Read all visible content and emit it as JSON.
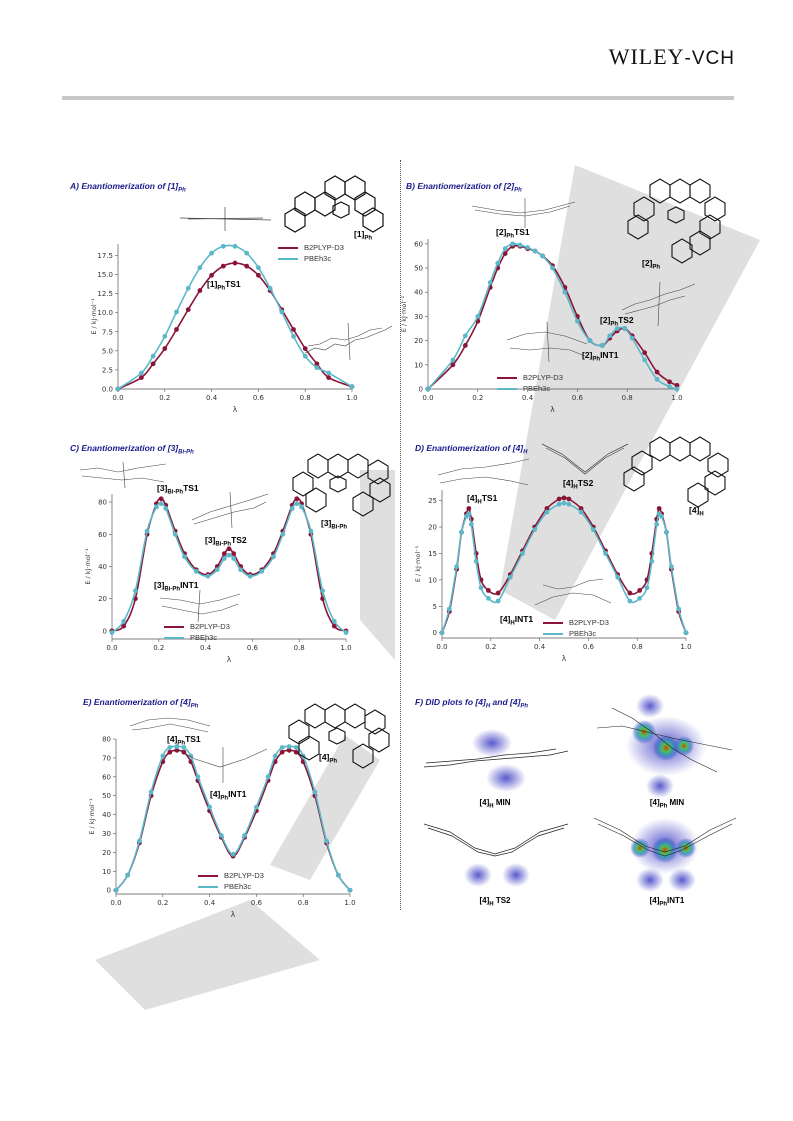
{
  "header": {
    "publisher_main": "WILEY",
    "publisher_suffix": "-VCH"
  },
  "legend": {
    "series_1": "B2PLYP-D3",
    "series_2": "PBEh3c"
  },
  "axis": {
    "xlabel": "λ",
    "ylabel": "E / kJ·mol⁻¹"
  },
  "colors": {
    "b2plyp": "#8a1538",
    "pbeh3c": "#5bb8c8",
    "title": "#1a1a8c",
    "watermark": "#d9d9d9"
  },
  "panels": {
    "A": {
      "title_main": "A) Enantiomerization of [1]",
      "title_sub": "Ph",
      "mol_main": "[1]",
      "mol_sub": "Ph",
      "labels": [
        {
          "main": "[1]",
          "sub": "Ph",
          "after": "TS1"
        }
      ]
    },
    "B": {
      "title_main": "B) Enantiomerization of [2]",
      "title_sub": "Ph",
      "mol_main": "[2]",
      "mol_sub": "Ph",
      "labels": [
        {
          "main": "[2]",
          "sub": "Ph",
          "after": "TS1"
        },
        {
          "main": "[2]",
          "sub": "Ph",
          "after": "TS2"
        },
        {
          "main": "[2]",
          "sub": "Ph",
          "after": "INT1"
        }
      ]
    },
    "C": {
      "title_main": "C) Enantiomerization of [3]",
      "title_sub": "Bi-Ph",
      "mol_main": "[3]",
      "mol_sub": "Bi-Ph",
      "labels": [
        {
          "main": "[3]",
          "sub": "Bi-Ph",
          "after": "TS1"
        },
        {
          "main": "[3]",
          "sub": "Bi-Ph",
          "after": "TS2"
        },
        {
          "main": "[3]",
          "sub": "Bi-Ph",
          "after": "INT1"
        }
      ]
    },
    "D": {
      "title_main": "D) Enantiomerization of [4]",
      "title_sub": "H",
      "mol_main": "[4]",
      "mol_sub": "H",
      "labels": [
        {
          "main": "[4]",
          "sub": "H",
          "after": "TS1"
        },
        {
          "main": "[4]",
          "sub": "H",
          "after": "TS2"
        },
        {
          "main": "[4]",
          "sub": "H",
          "after": "INT1"
        }
      ]
    },
    "E": {
      "title_main": "E) Enantiomerization of [4]",
      "title_sub": "Ph",
      "mol_main": "[4]",
      "mol_sub": "Ph",
      "labels": [
        {
          "main": "[4]",
          "sub": "Ph",
          "after": "TS1"
        },
        {
          "main": "[4]",
          "sub": "Ph",
          "after": "INT1"
        }
      ]
    },
    "F": {
      "title_main": "F) DID plots fo [4]",
      "title_sub1": "H",
      "title_mid": " and [4]",
      "title_sub2": "Ph",
      "plots": [
        {
          "main": "[4]",
          "sub": "H",
          "after": " MIN"
        },
        {
          "main": "[4]",
          "sub": "Ph",
          "after": " MIN"
        },
        {
          "main": "[4]",
          "sub": "H",
          "after": " TS2"
        },
        {
          "main": "[4]",
          "sub": "Ph",
          "after": "INT1"
        }
      ]
    }
  },
  "chart_data": [
    {
      "id": "A",
      "type": "line",
      "xlabel": "λ",
      "ylabel": "E / kJ·mol⁻¹",
      "xlim": [
        0,
        1
      ],
      "ylim": [
        0,
        19
      ],
      "yticks": [
        0.0,
        2.5,
        5.0,
        7.5,
        10.0,
        12.5,
        15.0,
        17.5
      ],
      "ytick_format": 1,
      "xticks": [
        0.0,
        0.2,
        0.4,
        0.6,
        0.8,
        1.0
      ],
      "series": [
        {
          "name": "B2PLYP-D3",
          "x": [
            0.0,
            0.1,
            0.15,
            0.2,
            0.25,
            0.3,
            0.35,
            0.4,
            0.45,
            0.5,
            0.55,
            0.6,
            0.65,
            0.7,
            0.75,
            0.8,
            0.85,
            0.9,
            1.0
          ],
          "y": [
            0.0,
            1.5,
            3.3,
            5.3,
            7.8,
            10.4,
            12.9,
            14.9,
            16.1,
            16.5,
            16.1,
            14.9,
            12.9,
            10.4,
            7.8,
            5.3,
            3.3,
            1.5,
            0.3
          ]
        },
        {
          "name": "PBEh3c",
          "x": [
            0.0,
            0.1,
            0.15,
            0.2,
            0.25,
            0.3,
            0.35,
            0.4,
            0.45,
            0.5,
            0.55,
            0.6,
            0.65,
            0.7,
            0.75,
            0.8,
            0.85,
            0.9,
            1.0
          ],
          "y": [
            0.0,
            2.1,
            4.3,
            6.9,
            10.1,
            13.2,
            15.9,
            17.8,
            18.7,
            18.7,
            17.8,
            15.9,
            13.2,
            10.1,
            6.9,
            4.3,
            2.8,
            2.1,
            0.3
          ]
        }
      ]
    },
    {
      "id": "B",
      "type": "line",
      "xlabel": "λ",
      "ylabel": "E / kJ·mol⁻¹",
      "xlim": [
        0,
        1
      ],
      "ylim": [
        0,
        62
      ],
      "yticks": [
        0,
        10,
        20,
        30,
        40,
        50,
        60
      ],
      "ytick_format": 0,
      "xticks": [
        0.0,
        0.2,
        0.4,
        0.6,
        0.8,
        1.0
      ],
      "series": [
        {
          "name": "B2PLYP-D3",
          "x": [
            0.0,
            0.1,
            0.15,
            0.2,
            0.25,
            0.28,
            0.31,
            0.34,
            0.37,
            0.4,
            0.43,
            0.46,
            0.5,
            0.55,
            0.6,
            0.65,
            0.7,
            0.73,
            0.76,
            0.79,
            0.82,
            0.87,
            0.92,
            0.97,
            1.0
          ],
          "y": [
            0.0,
            10.0,
            18.0,
            28.0,
            42.0,
            50.0,
            56.0,
            59.0,
            59.0,
            58.0,
            57.0,
            55.0,
            51.0,
            42.0,
            30.0,
            20.0,
            18.0,
            21.0,
            24.0,
            25.0,
            22.0,
            15.0,
            7.0,
            3.0,
            1.5
          ]
        },
        {
          "name": "PBEh3c",
          "x": [
            0.0,
            0.1,
            0.15,
            0.2,
            0.25,
            0.28,
            0.31,
            0.34,
            0.37,
            0.4,
            0.43,
            0.46,
            0.5,
            0.55,
            0.6,
            0.65,
            0.7,
            0.73,
            0.76,
            0.79,
            0.82,
            0.87,
            0.92,
            0.97,
            1.0
          ],
          "y": [
            0.0,
            12.0,
            22.0,
            30.0,
            44.0,
            52.0,
            58.0,
            60.0,
            59.5,
            58.5,
            57.0,
            55.0,
            50.0,
            40.0,
            28.0,
            20.0,
            18.0,
            22.0,
            25.0,
            25.0,
            21.0,
            12.0,
            4.0,
            1.0,
            0.0
          ]
        }
      ]
    },
    {
      "id": "C",
      "type": "line",
      "xlabel": "λ",
      "ylabel": "E / kJ·mol⁻¹",
      "xlim": [
        0,
        1
      ],
      "ylim": [
        -5,
        85
      ],
      "yticks": [
        0,
        20,
        40,
        60,
        80
      ],
      "ytick_format": 0,
      "xticks": [
        0.0,
        0.2,
        0.4,
        0.6,
        0.8,
        1.0
      ],
      "series": [
        {
          "name": "B2PLYP-D3",
          "x": [
            0.0,
            0.05,
            0.1,
            0.15,
            0.19,
            0.21,
            0.23,
            0.27,
            0.31,
            0.36,
            0.41,
            0.45,
            0.48,
            0.5,
            0.52,
            0.55,
            0.59,
            0.64,
            0.69,
            0.73,
            0.77,
            0.79,
            0.81,
            0.85,
            0.9,
            0.95,
            1.0
          ],
          "y": [
            0.0,
            3.0,
            20.0,
            60.0,
            79.0,
            82.0,
            78.0,
            62.0,
            48.0,
            38.0,
            35.0,
            40.0,
            48.0,
            51.0,
            48.0,
            40.0,
            35.0,
            38.0,
            48.0,
            62.0,
            78.0,
            82.0,
            79.0,
            60.0,
            20.0,
            3.0,
            0.0
          ]
        },
        {
          "name": "PBEh3c",
          "x": [
            0.0,
            0.05,
            0.1,
            0.15,
            0.19,
            0.21,
            0.23,
            0.27,
            0.31,
            0.36,
            0.41,
            0.45,
            0.48,
            0.5,
            0.52,
            0.55,
            0.59,
            0.64,
            0.69,
            0.73,
            0.77,
            0.79,
            0.81,
            0.85,
            0.9,
            0.95,
            1.0
          ],
          "y": [
            -1.0,
            6.0,
            25.0,
            62.0,
            77.0,
            79.0,
            76.0,
            60.0,
            46.0,
            37.0,
            34.0,
            38.0,
            45.0,
            47.0,
            45.0,
            38.0,
            34.0,
            37.0,
            46.0,
            60.0,
            76.0,
            79.0,
            77.0,
            62.0,
            25.0,
            6.0,
            -1.0
          ]
        }
      ]
    },
    {
      "id": "D",
      "type": "line",
      "xlabel": "λ",
      "ylabel": "E / kJ·mol⁻¹",
      "xlim": [
        0,
        1
      ],
      "ylim": [
        -1,
        27
      ],
      "yticks": [
        0,
        5,
        10,
        15,
        20,
        25
      ],
      "ytick_format": 0,
      "xticks": [
        0.0,
        0.2,
        0.4,
        0.6,
        0.8,
        1.0
      ],
      "series": [
        {
          "name": "B2PLYP-D3",
          "x": [
            0.0,
            0.03,
            0.06,
            0.08,
            0.1,
            0.11,
            0.12,
            0.14,
            0.16,
            0.19,
            0.23,
            0.28,
            0.33,
            0.38,
            0.43,
            0.48,
            0.5,
            0.52,
            0.57,
            0.62,
            0.67,
            0.72,
            0.77,
            0.81,
            0.84,
            0.86,
            0.88,
            0.89,
            0.9,
            0.92,
            0.94,
            0.97,
            1.0
          ],
          "y": [
            0.0,
            4.0,
            12.0,
            19.0,
            22.5,
            23.5,
            21.5,
            15.0,
            10.0,
            8.0,
            7.5,
            11.0,
            15.5,
            20.0,
            23.5,
            25.3,
            25.5,
            25.3,
            23.5,
            20.0,
            15.5,
            11.0,
            7.5,
            8.0,
            10.0,
            15.0,
            21.5,
            23.5,
            22.5,
            19.0,
            12.0,
            4.0,
            0.0
          ]
        },
        {
          "name": "PBEh3c",
          "x": [
            0.0,
            0.03,
            0.06,
            0.08,
            0.1,
            0.11,
            0.12,
            0.14,
            0.16,
            0.19,
            0.23,
            0.28,
            0.33,
            0.38,
            0.43,
            0.48,
            0.5,
            0.52,
            0.57,
            0.62,
            0.67,
            0.72,
            0.77,
            0.81,
            0.84,
            0.86,
            0.88,
            0.89,
            0.9,
            0.92,
            0.94,
            0.97,
            1.0
          ],
          "y": [
            0.0,
            4.5,
            12.5,
            19.0,
            22.0,
            22.5,
            20.5,
            13.5,
            8.5,
            6.5,
            6.0,
            10.5,
            15.0,
            19.5,
            22.8,
            24.3,
            24.5,
            24.3,
            22.8,
            19.5,
            15.0,
            10.5,
            6.0,
            6.5,
            8.5,
            13.5,
            20.5,
            22.5,
            22.0,
            19.0,
            12.5,
            4.5,
            0.0
          ]
        }
      ]
    },
    {
      "id": "E",
      "type": "line",
      "xlabel": "λ",
      "ylabel": "E / kJ·mol⁻¹",
      "xlim": [
        0,
        1
      ],
      "ylim": [
        -2,
        80
      ],
      "yticks": [
        0,
        10,
        20,
        30,
        40,
        50,
        60,
        70,
        80
      ],
      "ytick_format": 0,
      "xticks": [
        0.0,
        0.2,
        0.4,
        0.6,
        0.8,
        1.0
      ],
      "series": [
        {
          "name": "B2PLYP-D3",
          "x": [
            0.0,
            0.05,
            0.1,
            0.15,
            0.2,
            0.23,
            0.26,
            0.29,
            0.32,
            0.35,
            0.4,
            0.45,
            0.5,
            0.55,
            0.6,
            0.65,
            0.68,
            0.71,
            0.74,
            0.77,
            0.8,
            0.85,
            0.9,
            0.95,
            1.0
          ],
          "y": [
            0.0,
            8.0,
            25.0,
            50.0,
            68.0,
            73.0,
            74.0,
            73.0,
            68.0,
            58.0,
            42.0,
            28.0,
            18.0,
            28.0,
            42.0,
            58.0,
            68.0,
            73.0,
            74.0,
            73.0,
            68.0,
            50.0,
            25.0,
            8.0,
            0.0
          ]
        },
        {
          "name": "PBEh3c",
          "x": [
            0.0,
            0.05,
            0.1,
            0.15,
            0.2,
            0.23,
            0.26,
            0.29,
            0.32,
            0.35,
            0.4,
            0.45,
            0.5,
            0.55,
            0.6,
            0.65,
            0.68,
            0.71,
            0.74,
            0.77,
            0.8,
            0.85,
            0.9,
            0.95,
            1.0
          ],
          "y": [
            0.0,
            8.0,
            26.0,
            52.0,
            71.0,
            75.5,
            76.0,
            75.5,
            71.0,
            60.0,
            44.0,
            29.0,
            19.0,
            29.0,
            44.0,
            60.0,
            71.0,
            75.5,
            76.0,
            75.5,
            71.0,
            52.0,
            26.0,
            8.0,
            0.0
          ]
        }
      ]
    }
  ]
}
